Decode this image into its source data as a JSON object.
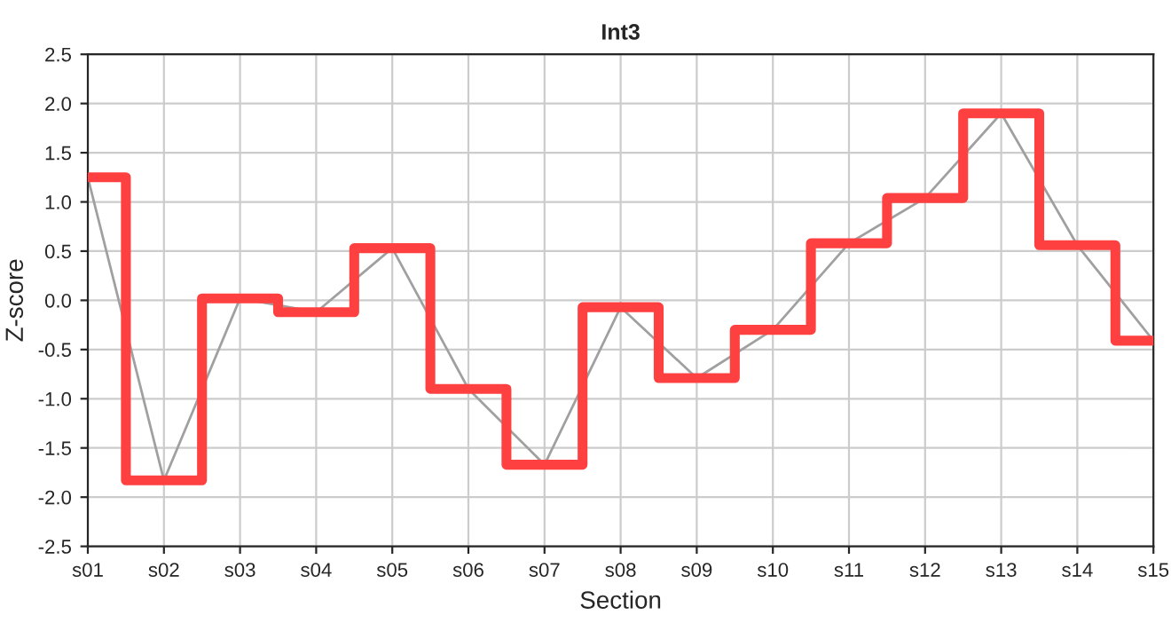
{
  "chart_data": {
    "type": "line",
    "title": "Int3",
    "xlabel": "Section",
    "ylabel": "Z-score",
    "categories": [
      "s01",
      "s02",
      "s03",
      "s04",
      "s05",
      "s06",
      "s07",
      "s08",
      "s09",
      "s10",
      "s11",
      "s12",
      "s13",
      "s14",
      "s15"
    ],
    "series": [
      {
        "color": "#a0a0a0",
        "values": [
          1.25,
          -1.83,
          0.02,
          -0.12,
          0.53,
          -0.9,
          -1.67,
          -0.07,
          -0.79,
          -0.3,
          0.58,
          1.04,
          1.9,
          0.56,
          -0.41
        ]
      },
      {
        "type": "step",
        "color": "#ff4040",
        "values": [
          1.25,
          -1.83,
          0.02,
          -0.12,
          0.53,
          -0.9,
          -1.67,
          -0.07,
          -0.79,
          -0.3,
          0.58,
          1.04,
          1.9,
          0.56,
          -0.41
        ]
      }
    ],
    "ylim": [
      -2.5,
      2.5
    ],
    "yticks": [
      -2.5,
      {
        "value": -2,
        "label": "-2.0"
      },
      -1.5,
      {
        "value": -1,
        "label": "-1.0"
      },
      -0.5,
      {
        "value": 0,
        "label": "0.0"
      },
      0.5,
      {
        "value": 1,
        "label": "1.0"
      },
      1.5,
      {
        "value": 2,
        "label": "2.0"
      },
      2.5
    ],
    "grid": true,
    "legend": false
  }
}
